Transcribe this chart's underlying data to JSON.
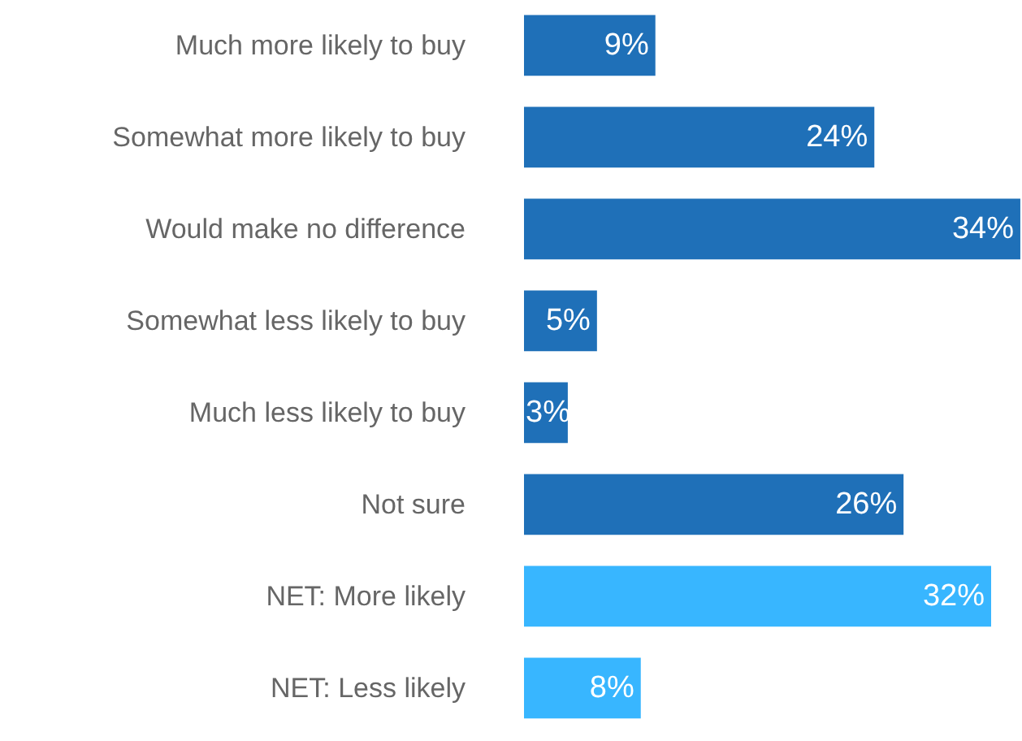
{
  "chart_data": {
    "type": "bar",
    "orientation": "horizontal",
    "categories": [
      "Much more likely to buy",
      "Somewhat more likely to buy",
      "Would make no difference",
      "Somewhat less likely to buy",
      "Much less likely to buy",
      "Not sure",
      "NET: More likely",
      "NET: Less likely"
    ],
    "values": [
      9,
      24,
      34,
      5,
      3,
      26,
      32,
      8
    ],
    "colors": [
      "#1f70b8",
      "#1f70b8",
      "#1f70b8",
      "#1f70b8",
      "#1f70b8",
      "#1f70b8",
      "#38b6ff",
      "#38b6ff"
    ],
    "value_labels": [
      "9%",
      "24%",
      "34%",
      "5%",
      "3%",
      "26%",
      "32%",
      "8%"
    ],
    "grid": false,
    "tick_labels": "y"
  }
}
